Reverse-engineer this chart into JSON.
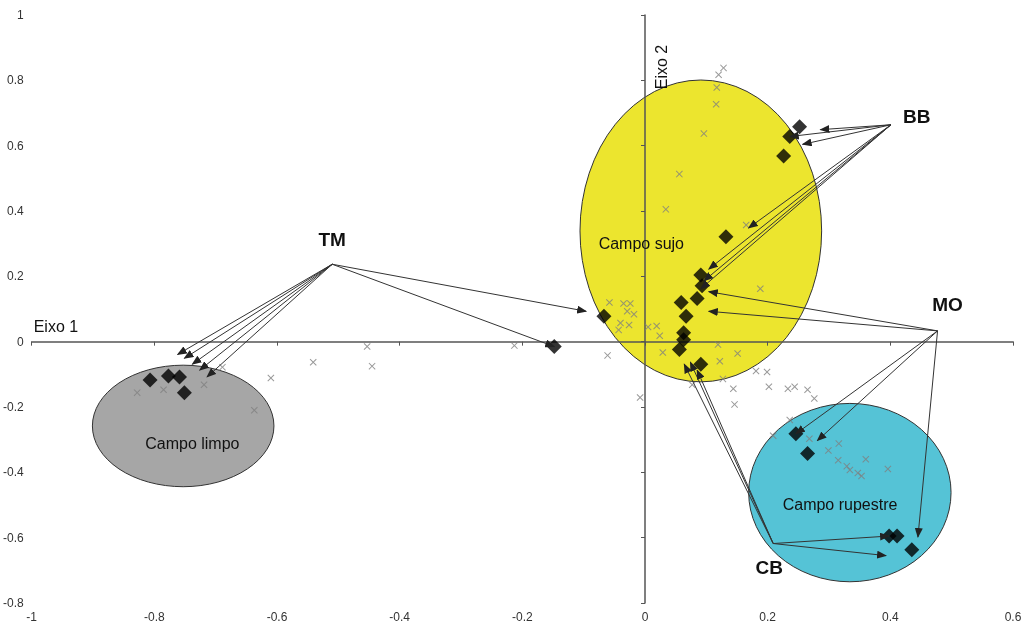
{
  "chart_data": {
    "type": "scatter",
    "xlabel": "Eixo 1",
    "ylabel": "Eixo 2",
    "xlim": [
      -1,
      0.6
    ],
    "xticks": [
      -1,
      -0.8,
      -0.6,
      -0.4,
      -0.2,
      0,
      0.2,
      0.4,
      0.6
    ],
    "ylim": [
      -0.8,
      1
    ],
    "yticks": [
      -0.8,
      -0.6,
      -0.4,
      -0.2,
      0,
      0.2,
      0.4,
      0.6,
      0.8,
      1
    ],
    "annotations": [
      {
        "text": "TM",
        "x": -0.148,
        "y": -0.015
      },
      {
        "text": "BB",
        "x": 0.236,
        "y": 0.628
      },
      {
        "text": "MO",
        "x": 0.246,
        "y": -0.282
      },
      {
        "text": "CB",
        "x": 0.398,
        "y": -0.595
      },
      "Campo sujo",
      "Campo limpo",
      "Campo rupestre"
    ],
    "series": [
      {
        "marker": "cross",
        "color": "#808080",
        "x": [
          -0.828,
          -0.785,
          -0.719,
          -0.689,
          -0.637,
          -0.61,
          -0.541,
          -0.453,
          -0.445,
          -0.213,
          -0.061,
          -0.058,
          0.128,
          0.12,
          0.117,
          0.116,
          0.096,
          0.056,
          0.034,
          0.165,
          0.188,
          -0.035,
          -0.024,
          -0.029,
          -0.018,
          -0.04,
          -0.026,
          -0.043,
          0.005,
          0.019,
          0.024,
          0.029,
          0.119,
          0.122,
          0.151,
          0.127,
          0.077,
          0.144,
          0.146,
          -0.008,
          0.181,
          0.199,
          0.202,
          0.233,
          0.244,
          0.265,
          0.276,
          0.236,
          0.209,
          0.268,
          0.299,
          0.316,
          0.315,
          0.329,
          0.334,
          0.347,
          0.353,
          0.36,
          0.396
        ],
        "values": [
          -0.156,
          -0.147,
          -0.132,
          -0.078,
          -0.21,
          -0.111,
          -0.063,
          -0.015,
          -0.075,
          -0.012,
          -0.042,
          0.12,
          0.838,
          0.817,
          0.778,
          0.727,
          0.637,
          0.513,
          0.405,
          0.357,
          0.162,
          0.117,
          0.117,
          0.093,
          0.084,
          0.057,
          0.051,
          0.036,
          0.045,
          0.048,
          0.018,
          -0.033,
          -0.009,
          -0.06,
          -0.036,
          -0.114,
          -0.132,
          -0.144,
          -0.192,
          -0.171,
          -0.09,
          -0.093,
          -0.138,
          -0.144,
          -0.138,
          -0.147,
          -0.174,
          -0.24,
          -0.288,
          -0.297,
          -0.333,
          -0.312,
          -0.363,
          -0.381,
          -0.393,
          -0.402,
          -0.411,
          -0.36,
          -0.39
        ]
      },
      {
        "marker": "diamond",
        "color": "#000000",
        "x": [
          -0.807,
          -0.777,
          -0.759,
          -0.751,
          -0.148,
          -0.067,
          0.236,
          0.252,
          0.226,
          0.132,
          0.091,
          0.093,
          0.059,
          0.085,
          0.067,
          0.063,
          0.063,
          0.056,
          0.091,
          0.246,
          0.265,
          0.398,
          0.411,
          0.435
        ],
        "values": [
          -0.117,
          -0.105,
          -0.108,
          -0.156,
          -0.015,
          0.078,
          0.628,
          0.658,
          0.568,
          0.321,
          0.204,
          0.171,
          0.12,
          0.132,
          0.078,
          0.027,
          0.006,
          -0.024,
          -0.069,
          -0.282,
          -0.342,
          -0.595,
          -0.595,
          -0.637
        ]
      }
    ]
  }
}
